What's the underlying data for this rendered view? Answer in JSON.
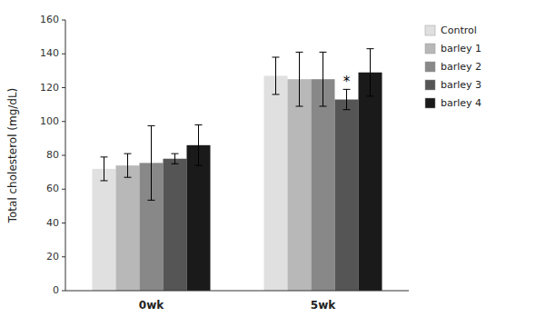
{
  "chart_data": {
    "type": "bar",
    "categories": [
      "0wk",
      "5wk"
    ],
    "series": [
      {
        "name": "Control",
        "color": "#e0e0e0",
        "values": [
          72,
          127
        ],
        "errors": [
          7,
          11
        ]
      },
      {
        "name": "barley 1",
        "color": "#b8b8b8",
        "values": [
          74,
          125
        ],
        "errors": [
          7,
          16
        ]
      },
      {
        "name": "barley 2",
        "color": "#888888",
        "values": [
          75.5,
          125
        ],
        "errors": [
          22,
          16
        ]
      },
      {
        "name": "barley 3",
        "color": "#555555",
        "values": [
          78,
          113
        ],
        "errors": [
          3,
          6
        ]
      },
      {
        "name": "barley 4",
        "color": "#1a1a1a",
        "values": [
          86,
          129
        ],
        "errors": [
          12,
          14
        ]
      }
    ],
    "ylabel": "Total cholesterol (mg/dL)",
    "ylim": [
      0,
      160
    ],
    "yticks": [
      0,
      20,
      40,
      60,
      80,
      100,
      120,
      140,
      160
    ],
    "annotations": [
      {
        "text": "*",
        "category": "5wk",
        "series": "barley 3"
      }
    ],
    "grid": false,
    "legend": "right"
  }
}
